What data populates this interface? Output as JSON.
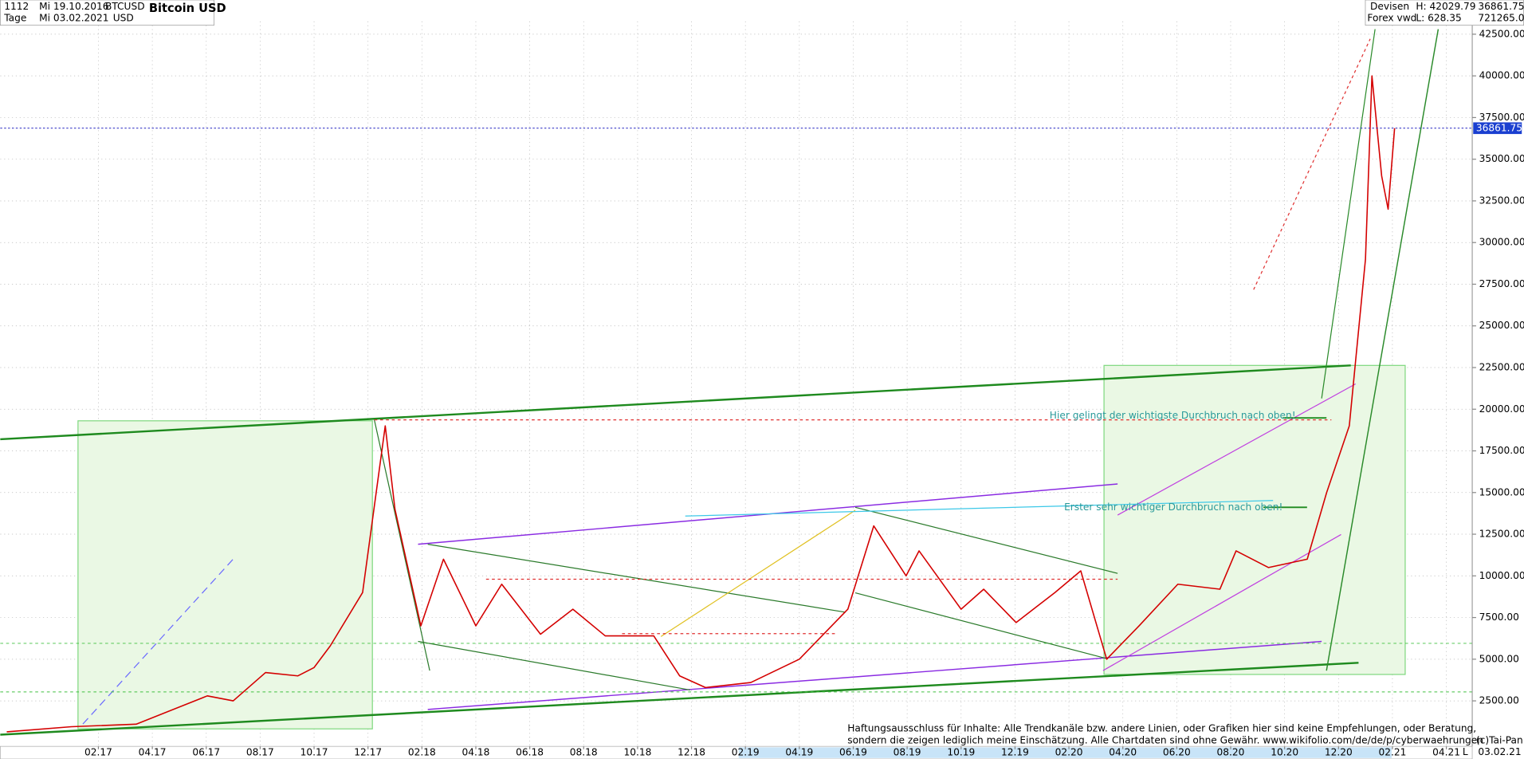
{
  "header": {
    "period": "1112",
    "start_date": "Mi 19.10.2016",
    "interval": "Tage",
    "end_date": "Mi 03.02.2021",
    "symbol": "BTCUSD",
    "currency": "USD",
    "market": "Devisen",
    "source": "Forex vwd",
    "high": "H: 42029.79",
    "low": "L: 628.35",
    "last": "36861.75",
    "volume": "721265.0/"
  },
  "footer": {
    "disclaimer": [
      "Haftungsausschluss für Inhalte: Alle Trendkanäle bzw. andere Linien, oder Grafiken hier sind keine Empfehlungen, oder Beratung,",
      "sondern die zeigen lediglich meine  Einschätzung. Alle Chartdaten sind ohne Gewähr.  www.wikifolio.com/de/de/p/cyberwaehrungen"
    ],
    "copyright": "(c)Tai-Pan",
    "date": "03.02.21",
    "scale_mode": "L"
  },
  "chart_data": {
    "type": "line",
    "title": "Bitcoin USD",
    "annotations": [
      "Hier gelingt der wichtigste Durchbruch nach oben!",
      "Erster sehr wichtiger Durchbruch nach oben!"
    ],
    "last_price": 36861.75,
    "x": [
      2016.8,
      2017.0,
      2017.2,
      2017.42,
      2017.5,
      2017.6,
      2017.7,
      2017.75,
      2017.8,
      2017.9,
      2017.97,
      2018.0,
      2018.08,
      2018.15,
      2018.25,
      2018.33,
      2018.45,
      2018.55,
      2018.65,
      2018.8,
      2018.88,
      2018.96,
      2019.1,
      2019.25,
      2019.4,
      2019.48,
      2019.58,
      2019.62,
      2019.75,
      2019.82,
      2019.92,
      2020.04,
      2020.12,
      2020.2,
      2020.3,
      2020.42,
      2020.55,
      2020.6,
      2020.7,
      2020.82,
      2020.88,
      2020.95,
      2021.0,
      2021.02,
      2021.05,
      2021.07,
      2021.09
    ],
    "values": [
      640,
      950,
      1100,
      2800,
      2500,
      4200,
      4000,
      4500,
      5800,
      9000,
      19000,
      14000,
      7000,
      11000,
      7000,
      9500,
      6500,
      8000,
      6400,
      6400,
      4000,
      3300,
      3600,
      5000,
      8000,
      13000,
      10000,
      11500,
      8000,
      9200,
      7200,
      9000,
      10300,
      5000,
      7000,
      9500,
      9200,
      11500,
      10500,
      11000,
      15000,
      19000,
      29000,
      40000,
      34000,
      32000,
      36861.75
    ],
    "color": "#d40000",
    "xlim": [
      2016.78,
      2021.33
    ],
    "xticks": [
      {
        "value": 2017.0833,
        "label": "02.17"
      },
      {
        "value": 2017.25,
        "label": "04.17"
      },
      {
        "value": 2017.4167,
        "label": "06.17"
      },
      {
        "value": 2017.5833,
        "label": "08.17"
      },
      {
        "value": 2017.75,
        "label": "10.17"
      },
      {
        "value": 2017.9167,
        "label": "12.17"
      },
      {
        "value": 2018.0833,
        "label": "02.18"
      },
      {
        "value": 2018.25,
        "label": "04.18"
      },
      {
        "value": 2018.4167,
        "label": "06.18"
      },
      {
        "value": 2018.5833,
        "label": "08.18"
      },
      {
        "value": 2018.75,
        "label": "10.18"
      },
      {
        "value": 2018.9167,
        "label": "12.18"
      },
      {
        "value": 2019.0833,
        "label": "02.19"
      },
      {
        "value": 2019.25,
        "label": "04.19"
      },
      {
        "value": 2019.4167,
        "label": "06.19"
      },
      {
        "value": 2019.5833,
        "label": "08.19"
      },
      {
        "value": 2019.75,
        "label": "10.19"
      },
      {
        "value": 2019.9167,
        "label": "12.19"
      },
      {
        "value": 2020.0833,
        "label": "02.20"
      },
      {
        "value": 2020.25,
        "label": "04.20"
      },
      {
        "value": 2020.4167,
        "label": "06.20"
      },
      {
        "value": 2020.5833,
        "label": "08.20"
      },
      {
        "value": 2020.75,
        "label": "10.20"
      },
      {
        "value": 2020.9167,
        "label": "12.20"
      },
      {
        "value": 2021.0833,
        "label": "02.21"
      },
      {
        "value": 2021.25,
        "label": "04.21"
      }
    ],
    "ylim": [
      -230,
      43270
    ],
    "yticks": [
      {
        "value": 2500,
        "label": "2500.00"
      },
      {
        "value": 5000,
        "label": "5000.00"
      },
      {
        "value": 7500,
        "label": "7500.00"
      },
      {
        "value": 10000,
        "label": "10000.00"
      },
      {
        "value": 12500,
        "label": "12500.00"
      },
      {
        "value": 15000,
        "label": "15000.00"
      },
      {
        "value": 17500,
        "label": "17500.00"
      },
      {
        "value": 20000,
        "label": "20000.00"
      },
      {
        "value": 22500,
        "label": "22500.00"
      },
      {
        "value": 25000,
        "label": "25000.00"
      },
      {
        "value": 27500,
        "label": "27500.00"
      },
      {
        "value": 30000,
        "label": "30000.00"
      },
      {
        "value": 32500,
        "label": "32500.00"
      },
      {
        "value": 35000,
        "label": "35000.00"
      },
      {
        "value": 37500,
        "label": "37500.00"
      },
      {
        "value": 40000,
        "label": "40000.00"
      },
      {
        "value": 42500,
        "label": "42500.00"
      }
    ],
    "grid": true
  }
}
